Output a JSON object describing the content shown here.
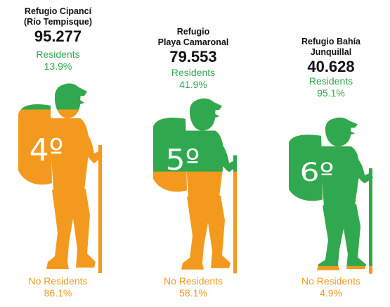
{
  "colors": {
    "residents": "#2fa84f",
    "no_residents": "#f39a1e",
    "text": "#111111"
  },
  "panels": [
    {
      "name_lines": [
        "Refugio Cipancí",
        "(Río Tempisque)"
      ],
      "total": "95.277",
      "rank": "4º",
      "residents_label": "Residents",
      "residents_pct": "13.9%",
      "no_residents_label": "No Residents",
      "no_residents_pct": "86.1%"
    },
    {
      "name_lines": [
        "Refugio",
        "Playa Camaronal"
      ],
      "total": "79.553",
      "rank": "5º",
      "residents_label": "Residents",
      "residents_pct": "41.9%",
      "no_residents_label": "No Residents",
      "no_residents_pct": "58.1%"
    },
    {
      "name_lines": [
        "Refugio Bahía",
        "Junquillal"
      ],
      "total": "40.628",
      "rank": "6º",
      "residents_label": "Residents",
      "residents_pct": "95.1%",
      "no_residents_label": "No Residents",
      "no_residents_pct": "4.9%"
    }
  ],
  "chart_data": {
    "type": "bar",
    "categories": [
      "Refugio Cipancí (Río Tempisque)",
      "Refugio Playa Camaronal",
      "Refugio Bahía Junquillal"
    ],
    "totals": [
      95277,
      79553,
      40628
    ],
    "ranks": [
      "4º",
      "5º",
      "6º"
    ],
    "series": [
      {
        "name": "Residents",
        "values": [
          13.9,
          41.9,
          95.1
        ]
      },
      {
        "name": "No Residents",
        "values": [
          86.1,
          58.1,
          4.9
        ]
      }
    ],
    "unit": "%"
  }
}
